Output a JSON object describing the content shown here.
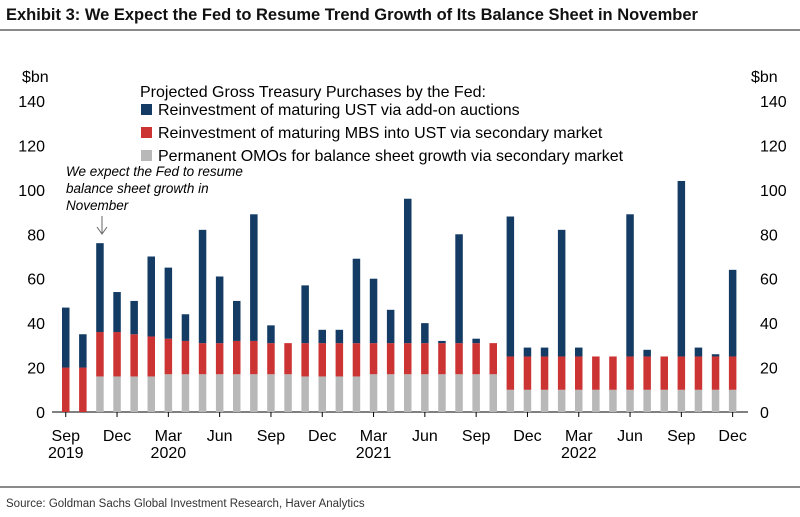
{
  "title": "Exhibit 3: We Expect the Fed to Resume Trend Growth of Its Balance Sheet in November",
  "source": "Source: Goldman Sachs Global Investment Research, Haver Analytics",
  "annotation": [
    "We expect the Fed  to resume",
    "balance sheet growth in",
    "November"
  ],
  "colors": {
    "add_on": "#133b63",
    "mbs": "#cc3333",
    "omo": "#b8b8b8",
    "rule": "#8a8a8a"
  },
  "chart_data": {
    "type": "bar",
    "stacked": true,
    "legend_title": "Projected Gross Treasury Purchases by the Fed:",
    "legend_position": "top",
    "ylabel_left": "$bn",
    "ylabel_right": "$bn",
    "ylim": [
      0,
      140
    ],
    "yticks": [
      0,
      20,
      40,
      60,
      80,
      100,
      120,
      140
    ],
    "grid": false,
    "x_tick_labels": [
      {
        "period": "2019-09",
        "label": "Sep",
        "year": "2019"
      },
      {
        "period": "2019-12",
        "label": "Dec",
        "year": ""
      },
      {
        "period": "2020-03",
        "label": "Mar",
        "year": "2020"
      },
      {
        "period": "2020-06",
        "label": "Jun",
        "year": ""
      },
      {
        "period": "2020-09",
        "label": "Sep",
        "year": ""
      },
      {
        "period": "2020-12",
        "label": "Dec",
        "year": ""
      },
      {
        "period": "2021-03",
        "label": "Mar",
        "year": "2021"
      },
      {
        "period": "2021-06",
        "label": "Jun",
        "year": ""
      },
      {
        "period": "2021-09",
        "label": "Sep",
        "year": ""
      },
      {
        "period": "2021-12",
        "label": "Dec",
        "year": ""
      },
      {
        "period": "2022-03",
        "label": "Mar",
        "year": "2022"
      },
      {
        "period": "2022-06",
        "label": "Jun",
        "year": ""
      },
      {
        "period": "2022-09",
        "label": "Sep",
        "year": ""
      },
      {
        "period": "2022-12",
        "label": "Dec",
        "year": ""
      }
    ],
    "categories": [
      "2019-09",
      "2019-10",
      "2019-11",
      "2019-12",
      "2020-01",
      "2020-02",
      "2020-03",
      "2020-04",
      "2020-05",
      "2020-06",
      "2020-07",
      "2020-08",
      "2020-09",
      "2020-10",
      "2020-11",
      "2020-12",
      "2021-01",
      "2021-02",
      "2021-03",
      "2021-04",
      "2021-05",
      "2021-06",
      "2021-07",
      "2021-08",
      "2021-09",
      "2021-10",
      "2021-11",
      "2021-12",
      "2022-01",
      "2022-02",
      "2022-03",
      "2022-04",
      "2022-05",
      "2022-06",
      "2022-07",
      "2022-08",
      "2022-09",
      "2022-10",
      "2022-11",
      "2022-12"
    ],
    "series": [
      {
        "name": "Permanent OMOs for balance sheet growth via secondary market",
        "color_key": "omo",
        "values": [
          0,
          0,
          16,
          16,
          16,
          16,
          17,
          17,
          17,
          17,
          17,
          17,
          17,
          17,
          16,
          16,
          16,
          16,
          17,
          17,
          17,
          17,
          17,
          17,
          17,
          17,
          10,
          10,
          10,
          10,
          10,
          10,
          10,
          10,
          10,
          10,
          10,
          10,
          10,
          10
        ]
      },
      {
        "name": "Reinvestment of maturing MBS into UST via secondary market",
        "color_key": "mbs",
        "values": [
          20,
          20,
          20,
          20,
          19,
          18,
          16,
          15,
          14,
          14,
          15,
          15,
          14,
          14,
          15,
          15,
          15,
          15,
          14,
          14,
          14,
          14,
          14,
          14,
          14,
          14,
          15,
          15,
          15,
          15,
          15,
          15,
          15,
          15,
          15,
          15,
          15,
          15,
          15,
          15
        ]
      },
      {
        "name": "Reinvestment of maturing UST via add-on auctions",
        "color_key": "add_on",
        "values": [
          27,
          15,
          40,
          18,
          15,
          36,
          32,
          12,
          51,
          30,
          18,
          57,
          8,
          0,
          26,
          6,
          6,
          38,
          29,
          15,
          65,
          9,
          1,
          49,
          2,
          0,
          63,
          4,
          4,
          57,
          4,
          0,
          0,
          64,
          3,
          0,
          79,
          4,
          1,
          39
        ]
      }
    ]
  }
}
